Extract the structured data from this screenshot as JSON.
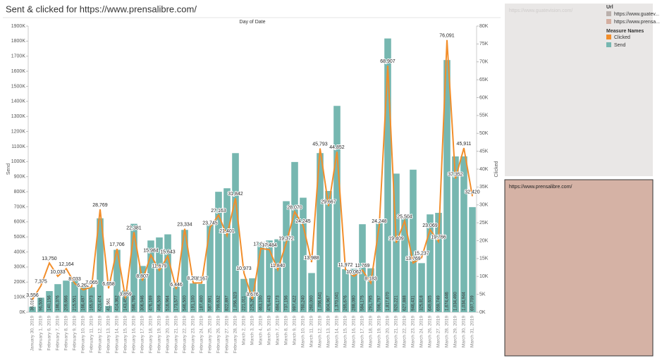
{
  "chart_data": {
    "type": "combo",
    "title": "Sent & clicked for https://www.prensalibre.com/",
    "x_label": "Day of Date",
    "y_label": "Send",
    "y2_label": "Clicked",
    "categories": [
      "January 30, 2019",
      "February 1, 2019",
      "February 6, 2019",
      "February 7, 2019",
      "February 8, 2019",
      "February 9, 2019",
      "February 10, 2019",
      "February 11, 2019",
      "February 12, 2019",
      "February 13, 2019",
      "February 14, 2019",
      "February 15, 2019",
      "February 16, 2019",
      "February 17, 2019",
      "February 18, 2019",
      "February 19, 2019",
      "February 20, 2019",
      "February 21, 2019",
      "February 22, 2019",
      "February 23, 2019",
      "February 24, 2019",
      "February 25, 2019",
      "February 26, 2019",
      "February 27, 2019",
      "February 28, 2019",
      "March 2, 2019",
      "March 3, 2019",
      "March 4, 2019",
      "March 5, 2019",
      "March 7, 2019",
      "March 8, 2019",
      "March 9, 2019",
      "March 10, 2019",
      "March 11, 2019",
      "March 12, 2019",
      "March 13, 2019",
      "March 14, 2019",
      "March 15, 2019",
      "March 16, 2019",
      "March 17, 2019",
      "March 18, 2019",
      "March 19, 2019",
      "March 20, 2019",
      "March 21, 2019",
      "March 22, 2019",
      "March 23, 2019",
      "March 24, 2019",
      "March 26, 2019",
      "March 27, 2019",
      "March 28, 2019",
      "March 29, 2019",
      "March 30, 2019",
      "March 31, 2019"
    ],
    "series": [
      {
        "name": "Send",
        "type": "bar",
        "color": "#76b7b0",
        "values": [
          36016,
          96500,
          140156,
          186376,
          209666,
          215551,
          166497,
          165973,
          623474,
          41561,
          414362,
          143458,
          586766,
          306946,
          476169,
          496509,
          516964,
          173577,
          546500,
          191100,
          187400,
          587691,
          799632,
          822897,
          1056323,
          221011,
          225264,
          463100,
          476443,
          484173,
          737156,
          997422,
          760240,
          260000,
          1056641,
          804967,
          1370041,
          285676,
          288080,
          584175,
          291795,
          596797,
          1817670,
          920221,
          627888,
          946431,
          325818,
          649605,
          659749,
          1674446,
          1034490,
          1034944,
          697709
        ],
        "value_labels": [
          "36,016",
          "96,500",
          "140,156",
          "186,376",
          "209,666",
          "215,551",
          "166,497",
          "165,973",
          "623,474",
          "41,561",
          "414,362",
          "143,458",
          "586,766",
          "306,946",
          "476,169",
          "496,509",
          "516,964",
          "173,577",
          "546,500",
          "191,100",
          "187,400",
          "587,691",
          "799,632",
          "822,897",
          "1,056,323",
          "221,011",
          "225,264",
          "463,100",
          "476,443",
          "484,173",
          "737,156",
          "997,422",
          "760,240",
          "260,000",
          "1,056,641",
          "804,967",
          "1,370,041",
          "285,676",
          "288,080",
          "584,175",
          "291,795",
          "596,797",
          "1,817,670",
          "920,221",
          "627,888",
          "946,431",
          "325,818",
          "649,605",
          "659,749",
          "1,674,446",
          "1,034,490",
          "1,034,944",
          "697,709"
        ]
      },
      {
        "name": "Clicked",
        "type": "line",
        "axis": "y2",
        "color": "#f28e2b",
        "values": [
          3556,
          7375,
          13750,
          10033,
          12164,
          8033,
          6262,
          7065,
          28769,
          6658,
          17706,
          3859,
          22381,
          8807,
          15984,
          11679,
          15643,
          6446,
          23334,
          8202,
          8167,
          23745,
          27163,
          21401,
          31842,
          10973,
          3676,
          17813,
          17484,
          11840,
          19372,
          28070,
          24245,
          13988,
          45793,
          29667,
          44852,
          11972,
          10062,
          11769,
          8183,
          24248,
          68907,
          19409,
          25504,
          13769,
          15237,
          23069,
          19766,
          76091,
          37352,
          45911,
          32420
        ],
        "value_labels": [
          "3,556",
          "7,375",
          "13,750",
          "10,033",
          "12,164",
          "8,033",
          "6,262",
          "7,065",
          "28,769",
          "6,658",
          "17,706",
          "3,859",
          "22,381",
          "8,807",
          "15,984",
          "11,679",
          "15,643",
          "6,446",
          "23,334",
          "8,202",
          "8,167",
          "23,745",
          "27,163",
          "21,401",
          "31,842",
          "10,973",
          "3,676",
          "17,813",
          "17,484",
          "11,840",
          "19,372",
          "28,070",
          "24,245",
          "13,988",
          "45,793",
          "29,667",
          "44,852",
          "11,972",
          "10,062",
          "11,769",
          "8,183",
          "24,248",
          "68,907",
          "19,409",
          "25,504",
          "13,769",
          "15,237",
          "23,069",
          "19,766",
          "76,091",
          "37,352",
          "45,911",
          "32,420"
        ]
      }
    ],
    "ylim": [
      0,
      1900000
    ],
    "yticks": [
      {
        "value": 0,
        "label": "0K"
      },
      {
        "value": 100000,
        "label": "100K"
      },
      {
        "value": 200000,
        "label": "200K"
      },
      {
        "value": 300000,
        "label": "300K"
      },
      {
        "value": 400000,
        "label": "400K"
      },
      {
        "value": 500000,
        "label": "500K"
      },
      {
        "value": 600000,
        "label": "600K"
      },
      {
        "value": 700000,
        "label": "700K"
      },
      {
        "value": 800000,
        "label": "800K"
      },
      {
        "value": 900000,
        "label": "900K"
      },
      {
        "value": 1000000,
        "label": "1000K"
      },
      {
        "value": 1100000,
        "label": "1100K"
      },
      {
        "value": 1200000,
        "label": "1200K"
      },
      {
        "value": 1300000,
        "label": "1300K"
      },
      {
        "value": 1400000,
        "label": "1400K"
      },
      {
        "value": 1500000,
        "label": "1500K"
      },
      {
        "value": 1600000,
        "label": "1600K"
      },
      {
        "value": 1700000,
        "label": "1700K"
      },
      {
        "value": 1800000,
        "label": "1800K"
      },
      {
        "value": 1900000,
        "label": "1900K"
      }
    ],
    "y2lim": [
      0,
      80000
    ],
    "y2ticks": [
      {
        "value": 0,
        "label": "0K"
      },
      {
        "value": 5000,
        "label": "5K"
      },
      {
        "value": 10000,
        "label": "10K"
      },
      {
        "value": 15000,
        "label": "15K"
      },
      {
        "value": 20000,
        "label": "20K"
      },
      {
        "value": 25000,
        "label": "25K"
      },
      {
        "value": 30000,
        "label": "30K"
      },
      {
        "value": 35000,
        "label": "35K"
      },
      {
        "value": 40000,
        "label": "40K"
      },
      {
        "value": 45000,
        "label": "45K"
      },
      {
        "value": 50000,
        "label": "50K"
      },
      {
        "value": 55000,
        "label": "55K"
      },
      {
        "value": 60000,
        "label": "60K"
      },
      {
        "value": 65000,
        "label": "65K"
      },
      {
        "value": 70000,
        "label": "70K"
      },
      {
        "value": 75000,
        "label": "75K"
      },
      {
        "value": 80000,
        "label": "80K"
      }
    ]
  },
  "legend": {
    "url_title": "Url",
    "urls": [
      {
        "label": "https://www.guatev...",
        "color": "#bab0ac"
      },
      {
        "label": "https://www.prensa...",
        "color": "#d4aea0"
      }
    ],
    "measure_title": "Measure Names"
  },
  "panels": [
    {
      "text": "https://www.guatevision.com/",
      "color": "#e9e7e6"
    },
    {
      "text": "https://www.prensalibre.com/",
      "color": "#d5b2a5"
    }
  ]
}
